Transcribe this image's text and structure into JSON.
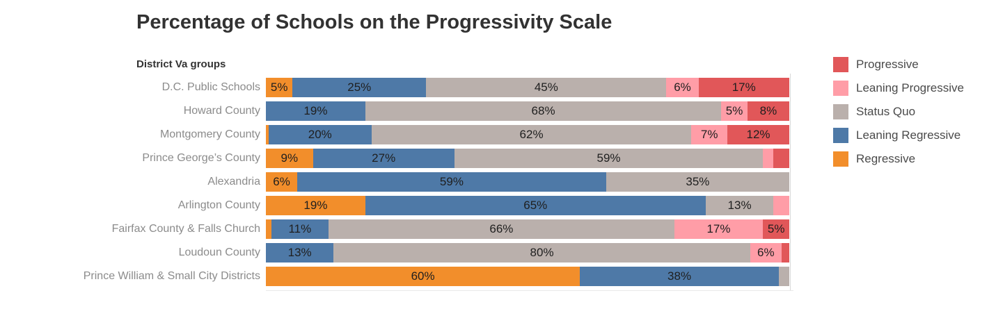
{
  "title": "Percentage of Schools on the Progressivity Scale",
  "axis_header": "District Va groups",
  "colors": {
    "Progressive": "#E15759",
    "Leaning Progressive": "#FF9DA7",
    "Status Quo": "#BAB0AC",
    "Leaning Regressive": "#4E79A7",
    "Regressive": "#F28E2B"
  },
  "legend": {
    "position": "right",
    "items": [
      "Progressive",
      "Leaning Progressive",
      "Status Quo",
      "Leaning Regressive",
      "Regressive"
    ]
  },
  "chart_data": {
    "type": "bar",
    "orientation": "horizontal-stacked",
    "title": "Percentage of Schools on the Progressivity Scale",
    "xlabel": "",
    "ylabel": "District Va groups",
    "xlim": [
      0,
      100
    ],
    "value_format": "percent",
    "grid": false,
    "legend_position": "right",
    "stack_order": [
      "Regressive",
      "Leaning Regressive",
      "Status Quo",
      "Leaning Progressive",
      "Progressive"
    ],
    "categories": [
      "D.C. Public Schools",
      "Howard County",
      "Montgomery County",
      "Prince George’s County",
      "Alexandria",
      "Arlington County",
      "Fairfax County & Falls Church",
      "Loudoun County",
      "Prince William & Small City Districts"
    ],
    "series": [
      {
        "name": "Regressive",
        "values": [
          5,
          0,
          0.5,
          9,
          6,
          19,
          1,
          0,
          60
        ],
        "labels": [
          "5%",
          "",
          "",
          "9%",
          "6%",
          "19%",
          "",
          "",
          "60%"
        ]
      },
      {
        "name": "Leaning Regressive",
        "values": [
          25,
          19,
          20,
          27,
          59,
          65,
          11,
          13,
          38
        ],
        "labels": [
          "25%",
          "19%",
          "20%",
          "27%",
          "59%",
          "65%",
          "11%",
          "13%",
          "38%"
        ]
      },
      {
        "name": "Status Quo",
        "values": [
          45,
          68,
          62,
          59,
          35,
          13,
          66,
          80,
          2
        ],
        "labels": [
          "45%",
          "68%",
          "62%",
          "59%",
          "35%",
          "13%",
          "66%",
          "80%",
          ""
        ]
      },
      {
        "name": "Leaning Progressive",
        "values": [
          6,
          5,
          7,
          2,
          0,
          3,
          17,
          6,
          0
        ],
        "labels": [
          "6%",
          "5%",
          "7%",
          "",
          "",
          "",
          "17%",
          "6%",
          ""
        ]
      },
      {
        "name": "Progressive",
        "values": [
          17,
          8,
          12,
          3,
          0,
          0,
          5,
          1.5,
          0
        ],
        "labels": [
          "17%",
          "8%",
          "12%",
          "",
          "",
          "",
          "5%",
          "",
          ""
        ]
      }
    ]
  }
}
